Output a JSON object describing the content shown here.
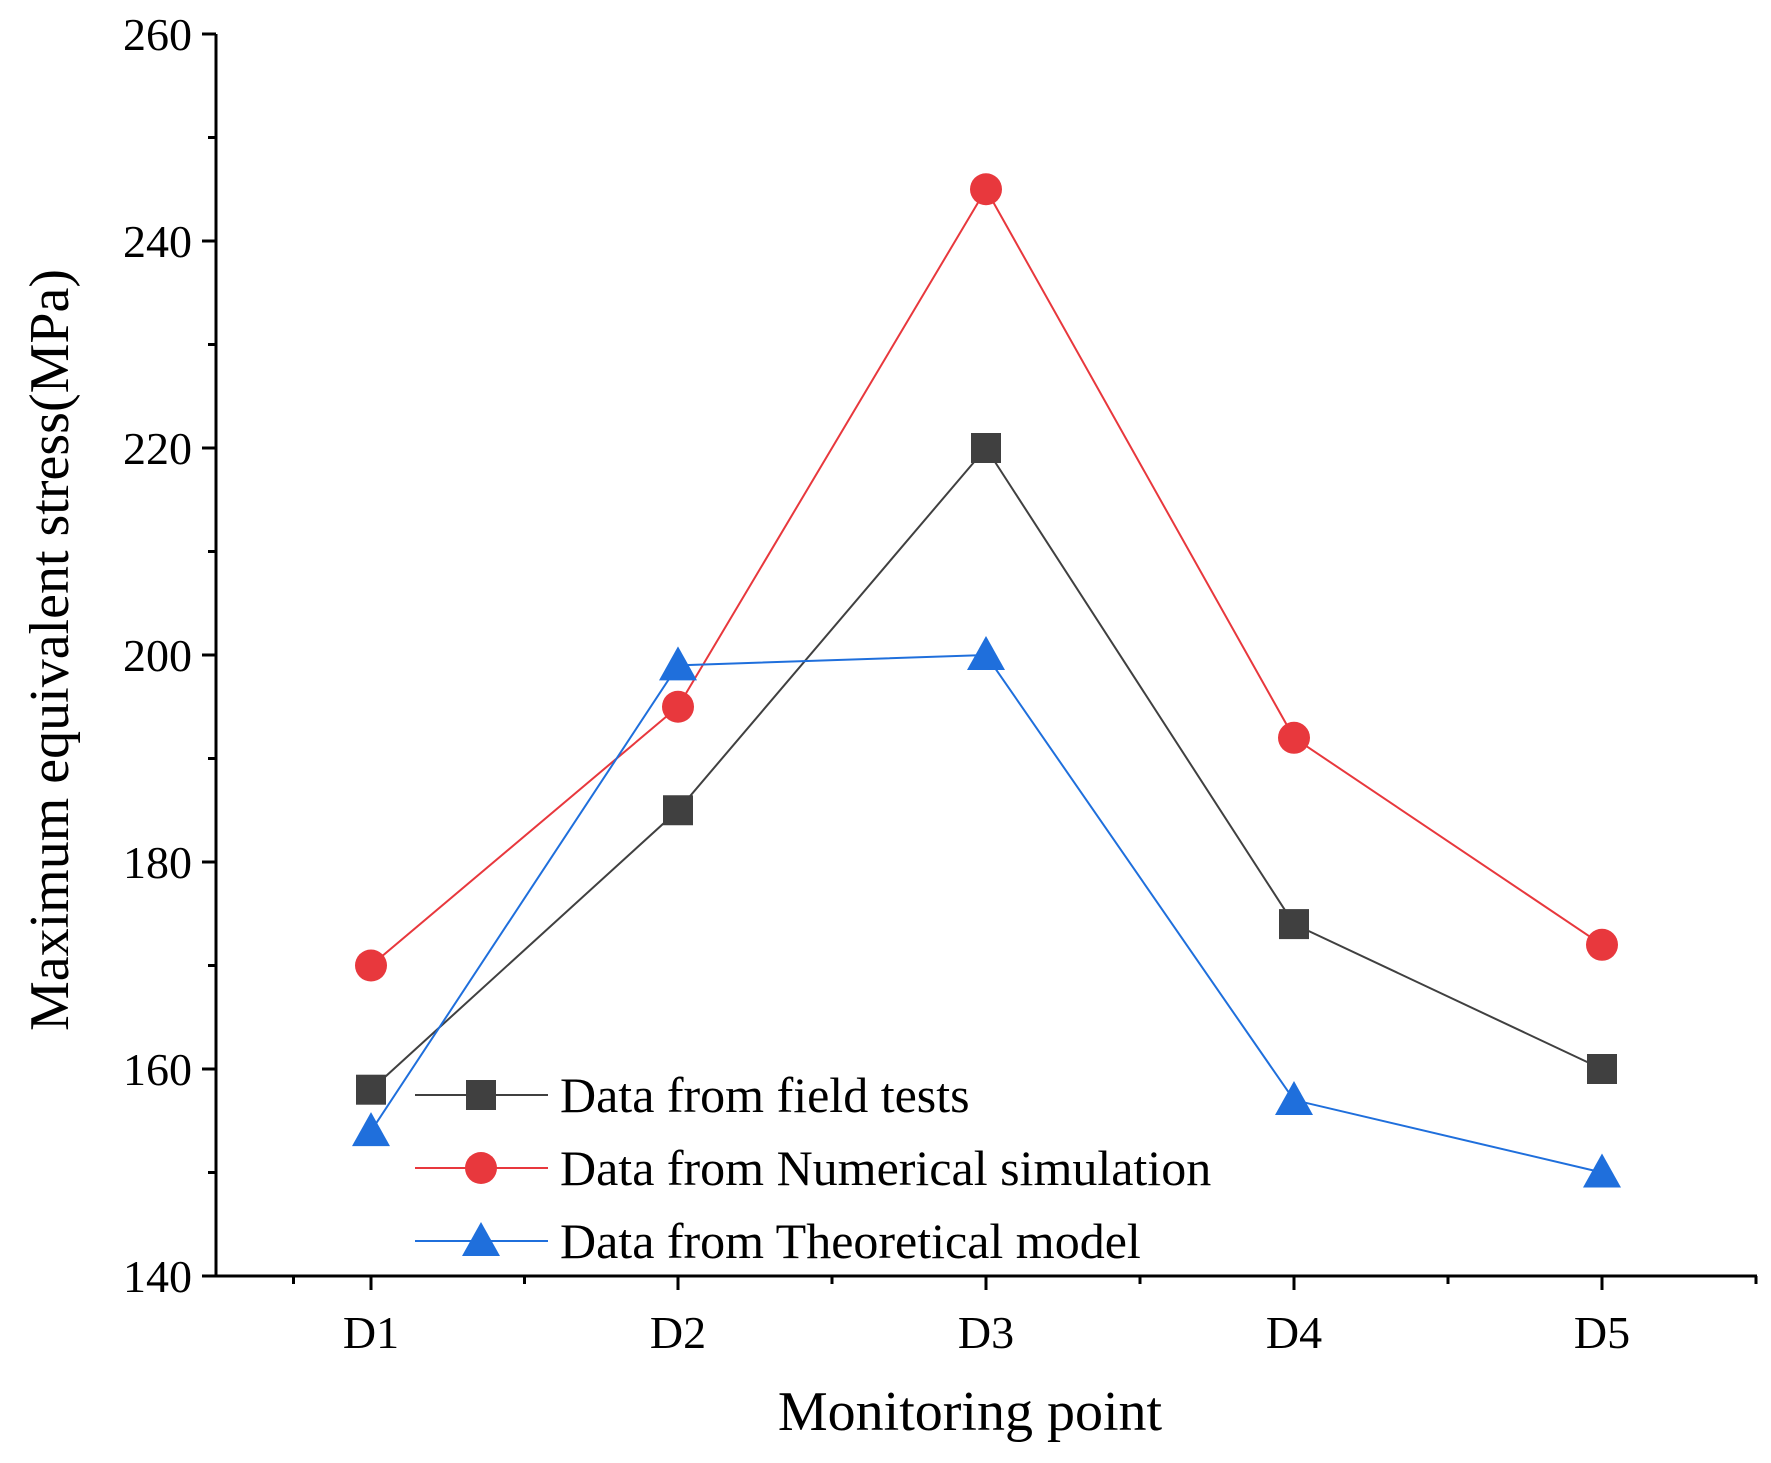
{
  "chart_data": {
    "type": "line",
    "xlabel": "Monitoring point",
    "ylabel": "Maximum equivalent stress(MPa)",
    "categories": [
      "D1",
      "D2",
      "D3",
      "D4",
      "D5"
    ],
    "ylim": [
      140,
      260
    ],
    "yticks": [
      140,
      160,
      180,
      200,
      220,
      240,
      260
    ],
    "grid": false,
    "legend_position": "bottom-left",
    "series": [
      {
        "name": "Data from field tests",
        "marker": "square",
        "color": "#404040",
        "values": [
          158,
          185,
          220,
          174,
          160
        ]
      },
      {
        "name": "Data from Numerical simulation",
        "marker": "circle",
        "color": "#e8383d",
        "values": [
          170,
          195,
          245,
          192,
          172
        ]
      },
      {
        "name": "Data from Theoretical model",
        "marker": "triangle",
        "color": "#1f6fdc",
        "values": [
          154,
          199,
          200,
          157,
          150
        ]
      }
    ]
  }
}
